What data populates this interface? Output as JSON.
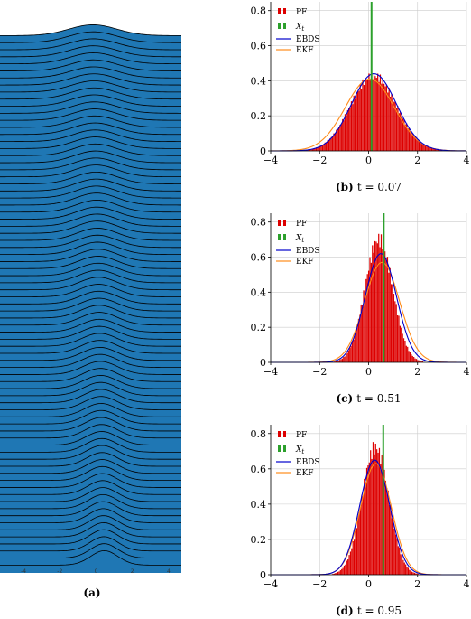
{
  "chart_data": [
    {
      "type": "area",
      "id": "ridgeline",
      "caption_label": "(a)",
      "caption_text": "",
      "rows": 76,
      "x_ticks": [
        "-4",
        "-2",
        "0",
        "2",
        "4"
      ],
      "xlim": [
        -4,
        4
      ],
      "fill_color": "#1f77b4",
      "line_color": "#000000"
    },
    {
      "type": "bar",
      "id": "panel-b",
      "caption_label": "(b)",
      "caption_text": "t = 0.07",
      "xlim": [
        -4,
        4
      ],
      "ylim": [
        0,
        0.85
      ],
      "x_ticks": [
        "−4",
        "−2",
        "0",
        "2",
        "4"
      ],
      "y_ticks": [
        "0",
        "0.2",
        "0.4",
        "0.6",
        "0.8"
      ],
      "grid": true,
      "legend_position": "top-left",
      "legend": [
        "PF",
        "X_t",
        "EBDS",
        "EKF"
      ],
      "pf_hist": {
        "mean": 0.2,
        "std": 0.93,
        "peak": 0.43
      },
      "true_state": 0.12,
      "ebds": {
        "mean": 0.22,
        "std": 0.92,
        "peak": 0.44
      },
      "ekf": {
        "mean": 0.05,
        "std": 1.0,
        "peak": 0.41
      }
    },
    {
      "type": "bar",
      "id": "panel-c",
      "caption_label": "(c)",
      "caption_text": "t = 0.51",
      "xlim": [
        -4,
        4
      ],
      "ylim": [
        0,
        0.85
      ],
      "x_ticks": [
        "−4",
        "−2",
        "0",
        "2",
        "4"
      ],
      "y_ticks": [
        "0",
        "0.2",
        "0.4",
        "0.6",
        "0.8"
      ],
      "grid": true,
      "legend_position": "top-left",
      "legend": [
        "PF",
        "X_t",
        "EBDS",
        "EKF"
      ],
      "pf_hist": {
        "mean": 0.42,
        "std": 0.57,
        "peak": 0.7
      },
      "true_state": 0.62,
      "ebds": {
        "mean": 0.5,
        "std": 0.64,
        "peak": 0.62
      },
      "ekf": {
        "mean": 0.55,
        "std": 0.72,
        "peak": 0.57
      }
    },
    {
      "type": "bar",
      "id": "panel-d",
      "caption_label": "(d)",
      "caption_text": "t = 0.95",
      "xlim": [
        -4,
        4
      ],
      "ylim": [
        0,
        0.85
      ],
      "x_ticks": [
        "−4",
        "−2",
        "0",
        "2",
        "4"
      ],
      "y_ticks": [
        "0",
        "0.2",
        "0.4",
        "0.6",
        "0.8"
      ],
      "grid": true,
      "legend_position": "top-left",
      "legend": [
        "PF",
        "X_t",
        "EBDS",
        "EKF"
      ],
      "pf_hist": {
        "mean": 0.28,
        "std": 0.55,
        "peak": 0.72
      },
      "true_state": 0.6,
      "ebds": {
        "mean": 0.25,
        "std": 0.61,
        "peak": 0.65
      },
      "ekf": {
        "mean": 0.3,
        "std": 0.63,
        "peak": 0.63
      }
    }
  ],
  "colors": {
    "pf": "#dd0000",
    "true_state": "#2ca02c",
    "ebds": "#0000cc",
    "ekf": "#ff8c1a",
    "grid": "#cccccc"
  }
}
